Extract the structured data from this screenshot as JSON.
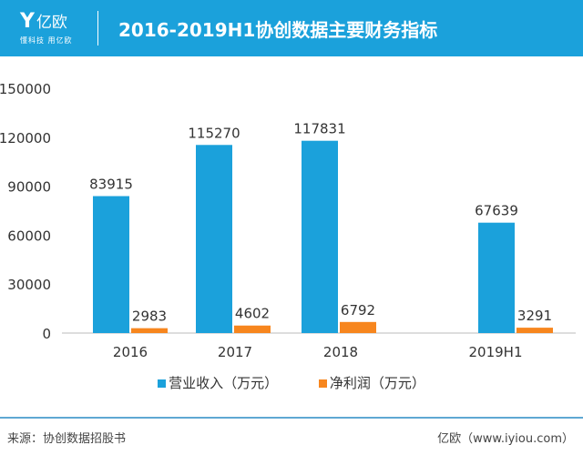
{
  "header": {
    "logo_name": "亿欧",
    "logo_slogan": "懂科技 用亿欧",
    "title": "2016-2019H1协创数据主要财务指标"
  },
  "chart_data": {
    "type": "bar",
    "title": "2016-2019H1协创数据主要财务指标",
    "categories": [
      "2016",
      "2017",
      "2018",
      "2019H1"
    ],
    "series": [
      {
        "name": "营业收入（万元）",
        "color": "#1ba1db",
        "values": [
          83915,
          115270,
          117831,
          67639
        ]
      },
      {
        "name": "净利润（万元）",
        "color": "#f7861e",
        "values": [
          2983,
          4602,
          6792,
          3291
        ]
      }
    ],
    "yticks": [
      "0",
      "30000",
      "60000",
      "90000",
      "120000",
      "150000"
    ],
    "ylim": [
      0,
      150000
    ],
    "legend": "bottom",
    "grid": false
  },
  "footer": {
    "source": "来源：协创数据招股书",
    "credit": "亿欧（www.iyiou.com）"
  }
}
